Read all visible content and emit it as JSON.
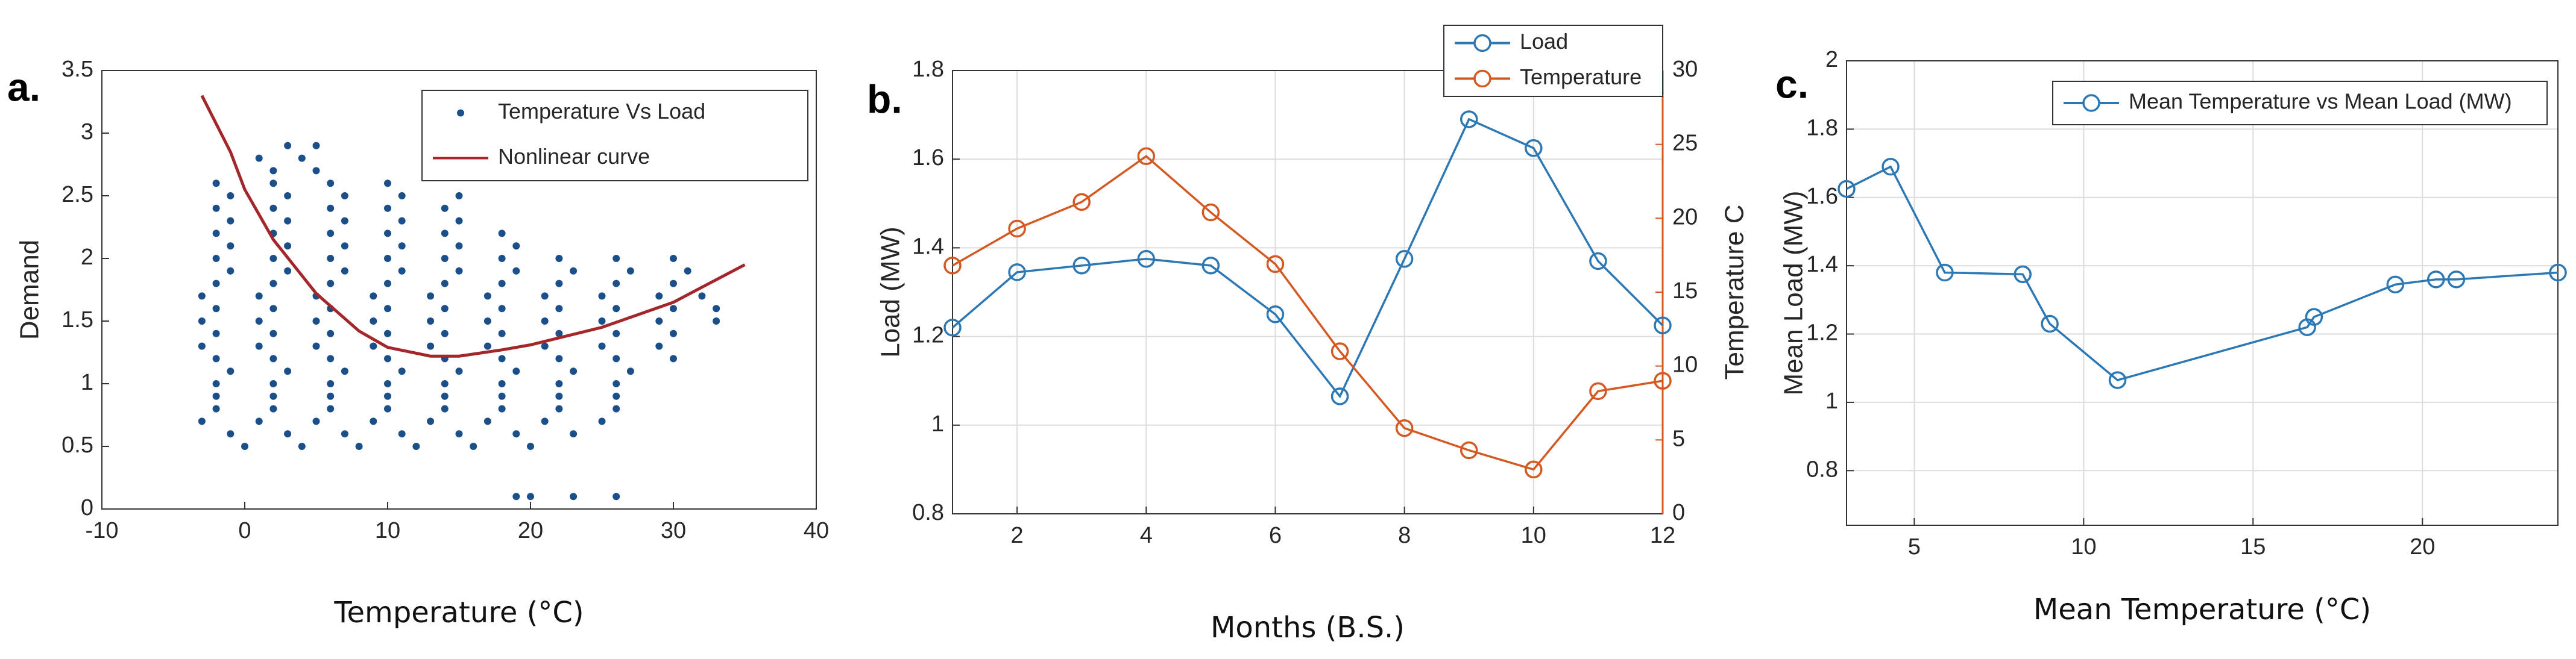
{
  "chart_data": [
    {
      "type": "scatter",
      "panel_label": "a.",
      "xlabel": "Temperature (°C)",
      "ylabel": "Demand",
      "xlim": [
        -10,
        40
      ],
      "xticks": [
        -10,
        0,
        10,
        20,
        30,
        40
      ],
      "ylim": [
        0,
        3.5
      ],
      "yticks": [
        0,
        0.5,
        1,
        1.5,
        2,
        2.5,
        3,
        3.5
      ],
      "grid": false,
      "legend": "top-right",
      "series": [
        {
          "name": "Temperature Vs Load",
          "color": "#1b4f8a",
          "mode": "markers",
          "x": [
            19,
            20,
            23,
            26,
            0,
            4,
            8,
            12,
            16,
            20,
            -1,
            3,
            7,
            11,
            15,
            19,
            23,
            -3,
            1,
            5,
            9,
            13,
            17,
            21,
            25,
            -2,
            2,
            6,
            10,
            14,
            18,
            22,
            26,
            -2,
            2,
            6,
            10,
            14,
            18,
            22,
            26,
            -2,
            2,
            6,
            10,
            14,
            18,
            22,
            26,
            -1,
            3,
            7,
            11,
            15,
            19,
            23,
            27,
            -2,
            2,
            6,
            10,
            14,
            18,
            22,
            26,
            30,
            -3,
            1,
            5,
            9,
            13,
            17,
            21,
            25,
            29,
            -2,
            2,
            6,
            10,
            14,
            18,
            22,
            26,
            30,
            -3,
            1,
            5,
            9,
            13,
            17,
            21,
            25,
            29,
            33,
            -2,
            2,
            6,
            10,
            14,
            18,
            22,
            26,
            30,
            33,
            -3,
            1,
            5,
            9,
            13,
            17,
            21,
            25,
            29,
            32,
            -2,
            2,
            6,
            10,
            14,
            18,
            22,
            26,
            30,
            -1,
            3,
            7,
            11,
            15,
            19,
            23,
            27,
            31,
            -2,
            2,
            6,
            10,
            14,
            18,
            22,
            26,
            30,
            -1,
            3,
            7,
            11,
            15,
            19,
            -2,
            2,
            6,
            10,
            14,
            18,
            -1,
            3,
            7,
            11,
            15,
            -2,
            2,
            6,
            10,
            14,
            -1,
            3,
            7,
            11,
            15,
            -2,
            2,
            6,
            10,
            2,
            5,
            1,
            4,
            3,
            5
          ],
          "values": [
            0.1,
            0.1,
            0.1,
            0.1,
            0.5,
            0.5,
            0.5,
            0.5,
            0.5,
            0.5,
            0.6,
            0.6,
            0.6,
            0.6,
            0.6,
            0.6,
            0.6,
            0.7,
            0.7,
            0.7,
            0.7,
            0.7,
            0.7,
            0.7,
            0.7,
            0.8,
            0.8,
            0.8,
            0.8,
            0.8,
            0.8,
            0.8,
            0.8,
            0.9,
            0.9,
            0.9,
            0.9,
            0.9,
            0.9,
            0.9,
            0.9,
            1,
            1,
            1,
            1,
            1,
            1,
            1,
            1,
            1.1,
            1.1,
            1.1,
            1.1,
            1.1,
            1.1,
            1.1,
            1.1,
            1.2,
            1.2,
            1.2,
            1.2,
            1.2,
            1.2,
            1.2,
            1.2,
            1.2,
            1.3,
            1.3,
            1.3,
            1.3,
            1.3,
            1.3,
            1.3,
            1.3,
            1.3,
            1.4,
            1.4,
            1.4,
            1.4,
            1.4,
            1.4,
            1.4,
            1.4,
            1.4,
            1.5,
            1.5,
            1.5,
            1.5,
            1.5,
            1.5,
            1.5,
            1.5,
            1.5,
            1.5,
            1.6,
            1.6,
            1.6,
            1.6,
            1.6,
            1.6,
            1.6,
            1.6,
            1.6,
            1.6,
            1.7,
            1.7,
            1.7,
            1.7,
            1.7,
            1.7,
            1.7,
            1.7,
            1.7,
            1.7,
            1.8,
            1.8,
            1.8,
            1.8,
            1.8,
            1.8,
            1.8,
            1.8,
            1.8,
            1.9,
            1.9,
            1.9,
            1.9,
            1.9,
            1.9,
            1.9,
            1.9,
            1.9,
            2,
            2,
            2,
            2,
            2,
            2,
            2,
            2,
            2,
            2.1,
            2.1,
            2.1,
            2.1,
            2.1,
            2.1,
            2.2,
            2.2,
            2.2,
            2.2,
            2.2,
            2.2,
            2.3,
            2.3,
            2.3,
            2.3,
            2.3,
            2.4,
            2.4,
            2.4,
            2.4,
            2.4,
            2.5,
            2.5,
            2.5,
            2.5,
            2.5,
            2.6,
            2.6,
            2.6,
            2.6,
            2.7,
            2.7,
            2.8,
            2.8,
            2.9,
            2.9
          ]
        },
        {
          "name": "Nonlinear curve",
          "color": "#a3262a",
          "mode": "line",
          "x": [
            -3,
            -1,
            0,
            2,
            5,
            8,
            10,
            13,
            15,
            18,
            20,
            25,
            30,
            35
          ],
          "values": [
            3.3,
            2.85,
            2.55,
            2.15,
            1.72,
            1.42,
            1.29,
            1.22,
            1.22,
            1.27,
            1.31,
            1.45,
            1.65,
            1.95
          ]
        }
      ]
    },
    {
      "type": "line",
      "panel_label": "b.",
      "xlabel": "Months (B.S.)",
      "ylabel": "Load (MW)",
      "y2label": "Temperature C",
      "x": [
        1,
        2,
        3,
        4,
        5,
        6,
        7,
        8,
        9,
        10,
        11,
        12
      ],
      "xlim": [
        1,
        12
      ],
      "xticks": [
        2,
        4,
        6,
        8,
        10,
        12
      ],
      "ylim": [
        0.8,
        1.8
      ],
      "yticks": [
        0.8,
        1,
        1.2,
        1.4,
        1.6,
        1.8
      ],
      "y2lim": [
        0,
        30
      ],
      "y2ticks": [
        0,
        5,
        10,
        15,
        20,
        25,
        30
      ],
      "grid": true,
      "legend": "top-right",
      "series": [
        {
          "name": "Load",
          "color": "#2b78b5",
          "mode": "line+markers",
          "values": [
            1.22,
            1.345,
            1.36,
            1.375,
            1.36,
            1.25,
            1.065,
            1.375,
            1.69,
            1.625,
            1.37,
            1.225
          ]
        },
        {
          "name": "Temperature",
          "color": "#d4581f",
          "mode": "line+markers",
          "axis": "y2",
          "values": [
            16.8,
            19.3,
            21.1,
            24.2,
            20.4,
            16.9,
            11,
            5.8,
            4.3,
            3,
            8.3,
            9
          ]
        }
      ]
    },
    {
      "type": "line",
      "panel_label": "c.",
      "xlabel": "Mean Temperature (°C)",
      "ylabel": "Mean Load (MW)",
      "x": [
        3,
        4.3,
        5.9,
        8.2,
        9,
        11,
        16.6,
        16.8,
        19.2,
        20.4,
        21,
        24
      ],
      "xlim": [
        3,
        24
      ],
      "xticks": [
        5,
        10,
        15,
        20
      ],
      "ylim": [
        0.64,
        2
      ],
      "yticks": [
        0.8,
        1,
        1.2,
        1.4,
        1.6,
        1.8,
        2
      ],
      "grid": true,
      "legend": "top-right",
      "series": [
        {
          "name": "Mean Temperature vs Mean Load (MW)",
          "color": "#2b78b5",
          "mode": "line+markers",
          "values": [
            1.625,
            1.69,
            1.38,
            1.375,
            1.23,
            1.065,
            1.22,
            1.25,
            1.345,
            1.36,
            1.36,
            1.38
          ]
        }
      ]
    }
  ]
}
